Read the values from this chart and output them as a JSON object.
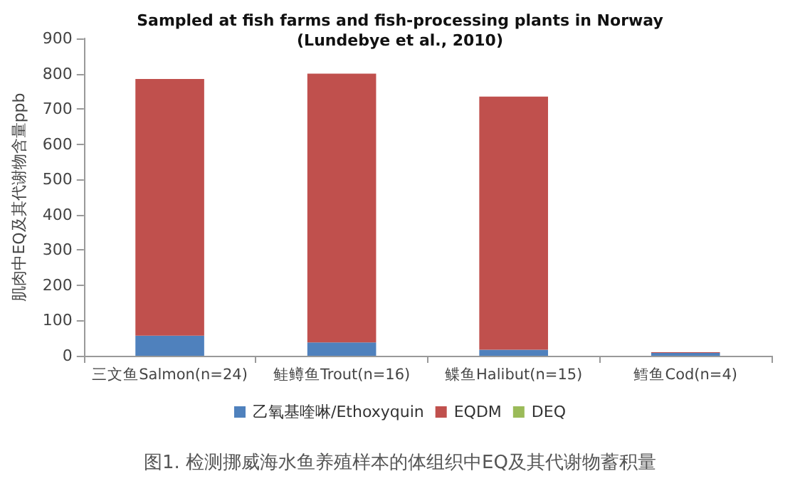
{
  "chart_data": {
    "type": "bar",
    "title": "Sampled at fish farms and fish-processing plants in Norway",
    "subtitle": "(Lundebye et al., 2010)",
    "ylabel": "肌肉中EQ及其代谢物含量ppb",
    "categories": [
      "三文鱼Salmon(n=24)",
      "鲑鳟鱼Trout(n=16)",
      "鲽鱼Halibut(n=15)",
      "鳕鱼Cod(n=4)"
    ],
    "series": [
      {
        "name": "乙氧基喹啉/Ethoxyquin",
        "color": "#4f81bd",
        "values": [
          57,
          38,
          17,
          8
        ]
      },
      {
        "name": "EQDM",
        "color": "#c0504d",
        "values": [
          728,
          762,
          718,
          2
        ]
      },
      {
        "name": "DEQ",
        "color": "#9bbb59",
        "values": [
          0,
          0,
          0,
          0
        ]
      }
    ],
    "stacked": true,
    "ylim": [
      0,
      900
    ],
    "yticks": [
      0,
      100,
      200,
      300,
      400,
      500,
      600,
      700,
      800,
      900
    ],
    "grid": false,
    "legend": "bottom",
    "annotations": [
      "图1. 检测挪威海水鱼养殖样本的体组织中EQ及其代谢物蓄积量"
    ]
  }
}
